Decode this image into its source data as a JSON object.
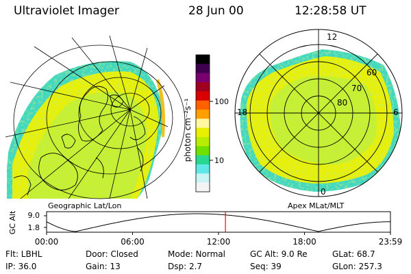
{
  "header": {
    "instrument": "Ultraviolet Imager",
    "date": "28 Jun 00",
    "time": "12:28:58 UT"
  },
  "colorbar": {
    "unit_label": "photon cm⁻²s⁻¹",
    "ticks": [
      "100",
      "10"
    ],
    "colors_top_to_bottom": [
      "#000000",
      "#400050",
      "#7a0070",
      "#a00020",
      "#d80000",
      "#ff6000",
      "#ffa000",
      "#fff8a0",
      "#e8f000",
      "#b8ec00",
      "#70e000",
      "#28d890",
      "#60e8e8",
      "#c8f4f4",
      "#f4f4f4"
    ]
  },
  "geo_panel": {
    "label": "Geographic Lat/Lon",
    "emission_colors": [
      "#c8f030",
      "#e8f000",
      "#78e020",
      "#40d8c0"
    ]
  },
  "apex_panel": {
    "label": "Apex  MLat/MLT",
    "mlt_labels": {
      "top": "12",
      "left": "18",
      "right": "6",
      "bottom": "0"
    },
    "mlat_labels": [
      "60",
      "70",
      "80"
    ]
  },
  "altitude_plot": {
    "ylabel": "GC Alt",
    "yticks": [
      "9.0",
      "1.8"
    ],
    "xticks": [
      "00:00",
      "06:00",
      "12:00",
      "18:00",
      "23:59"
    ],
    "current_time_marker_color": "#ff0000"
  },
  "info_rows": [
    [
      "Flt: LBHL",
      "Door: Closed",
      "Mode: Normal",
      "GC Alt: 9.0 Re",
      "GLat:  68.7"
    ],
    [
      "IP: 36.0",
      "Gain: 13",
      "Dsp:    2.7",
      "Seq: 39",
      "GLon: 257.3"
    ]
  ]
}
